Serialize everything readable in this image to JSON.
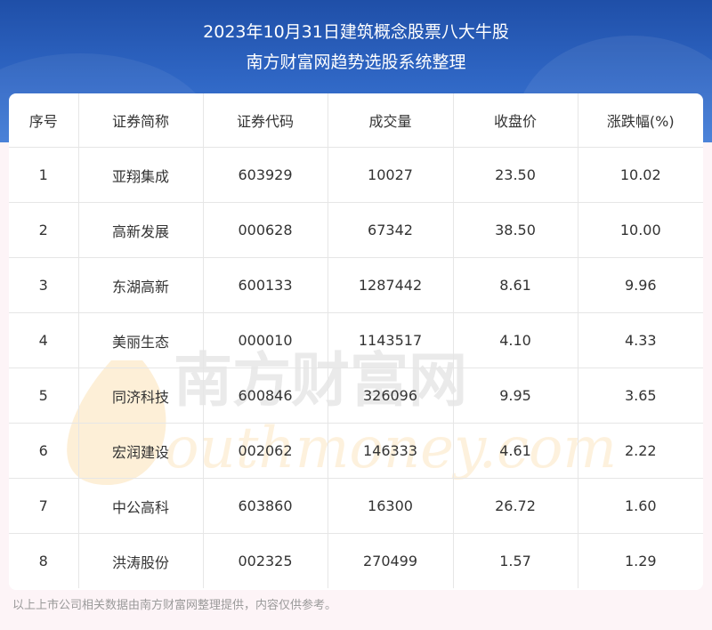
{
  "title_line1": "2023年10月31日建筑概念股票八大牛股",
  "title_line2": "南方财富网趋势选股系统整理",
  "table": {
    "headers": [
      "序号",
      "证券简称",
      "证券代码",
      "成交量",
      "收盘价",
      "涨跌幅(%)"
    ],
    "rows": [
      [
        "1",
        "亚翔集成",
        "603929",
        "10027",
        "23.50",
        "10.02"
      ],
      [
        "2",
        "高新发展",
        "000628",
        "67342",
        "38.50",
        "10.00"
      ],
      [
        "3",
        "东湖高新",
        "600133",
        "1287442",
        "8.61",
        "9.96"
      ],
      [
        "4",
        "美丽生态",
        "000010",
        "1143517",
        "4.10",
        "4.33"
      ],
      [
        "5",
        "同济科技",
        "600846",
        "326096",
        "9.95",
        "3.65"
      ],
      [
        "6",
        "宏润建设",
        "002062",
        "146333",
        "4.61",
        "2.22"
      ],
      [
        "7",
        "中公高科",
        "603860",
        "16300",
        "26.72",
        "1.60"
      ],
      [
        "8",
        "洪涛股份",
        "002325",
        "270499",
        "1.57",
        "1.29"
      ]
    ]
  },
  "watermark": {
    "cn": "南方财富网",
    "en": "outhmoney.com"
  },
  "footer": "以上上市公司相关数据由南方财富网整理提供，内容仅供参考。",
  "colors": {
    "header_blue": "#2f66c4",
    "page_bg": "#fdf4f7",
    "watermark_orange": "#f6b54a"
  }
}
